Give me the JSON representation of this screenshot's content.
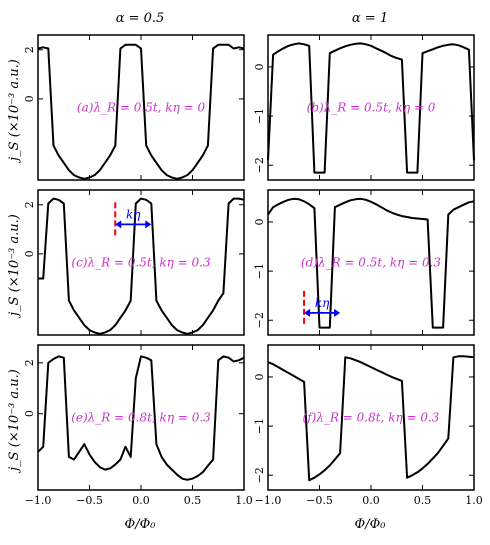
{
  "column_titles": [
    "α = 0.5",
    "α = 1"
  ],
  "x_axis_label": "Φ/Φ₀",
  "y_axis_label": "j_S (×10⁻³ a.u.)",
  "colors": {
    "curve": "#000000",
    "annotation": "#cc33cc",
    "marker_line": "#ff0000",
    "arrow": "#0000ff"
  },
  "chart_data": [
    {
      "type": "line",
      "panel": "a",
      "column": 0,
      "row": 0,
      "annotation": "(a)λ_R = 0.5t, kη = 0",
      "xlim": [
        -1.0,
        1.0
      ],
      "ylim": [
        -3.3,
        2.6
      ],
      "yticks": [
        2,
        0
      ],
      "x": [
        -1.0,
        -0.95,
        -0.9,
        -0.85,
        -0.8,
        -0.75,
        -0.7,
        -0.65,
        -0.6,
        -0.55,
        -0.5,
        -0.45,
        -0.4,
        -0.35,
        -0.3,
        -0.25,
        -0.2,
        -0.15,
        -0.1,
        -0.05,
        0.0,
        0.05,
        0.1,
        0.15,
        0.2,
        0.25,
        0.3,
        0.35,
        0.4,
        0.45,
        0.5,
        0.55,
        0.6,
        0.65,
        0.7,
        0.75,
        0.8,
        0.85,
        0.9,
        0.95,
        1.0
      ],
      "y": [
        2.05,
        2.1,
        2.05,
        -1.9,
        -2.3,
        -2.6,
        -2.9,
        -3.1,
        -3.2,
        -3.25,
        -3.2,
        -3.1,
        -2.9,
        -2.6,
        -2.3,
        -1.9,
        2.05,
        2.2,
        2.2,
        2.2,
        2.05,
        -1.9,
        -2.3,
        -2.6,
        -2.9,
        -3.1,
        -3.2,
        -3.25,
        -3.2,
        -3.1,
        -2.9,
        -2.6,
        -2.3,
        -1.9,
        2.05,
        2.2,
        2.2,
        2.2,
        2.05,
        2.1,
        2.05
      ]
    },
    {
      "type": "line",
      "panel": "b",
      "column": 1,
      "row": 0,
      "annotation": "(b)λ_R = 0.5t, kη = 0",
      "xlim": [
        -1.0,
        1.0
      ],
      "ylim": [
        -2.3,
        0.65
      ],
      "yticks": [
        0,
        -1,
        -2
      ],
      "x": [
        -1.0,
        -0.95,
        -0.9,
        -0.85,
        -0.8,
        -0.75,
        -0.7,
        -0.65,
        -0.6,
        -0.55,
        -0.5,
        -0.45,
        -0.4,
        -0.35,
        -0.3,
        -0.25,
        -0.2,
        -0.15,
        -0.1,
        -0.05,
        0.0,
        0.05,
        0.1,
        0.15,
        0.2,
        0.25,
        0.3,
        0.35,
        0.4,
        0.45,
        0.5,
        0.55,
        0.6,
        0.65,
        0.7,
        0.75,
        0.8,
        0.85,
        0.9,
        0.95,
        1.0
      ],
      "y": [
        -1.9,
        0.25,
        0.32,
        0.38,
        0.43,
        0.46,
        0.48,
        0.46,
        0.43,
        -2.15,
        -2.15,
        -2.15,
        0.28,
        0.33,
        0.38,
        0.42,
        0.45,
        0.47,
        0.48,
        0.46,
        0.43,
        0.38,
        0.33,
        0.28,
        0.22,
        0.18,
        0.15,
        -2.15,
        -2.15,
        -2.15,
        0.28,
        0.32,
        0.36,
        0.4,
        0.43,
        0.45,
        0.46,
        0.44,
        0.4,
        0.35,
        -1.9
      ]
    },
    {
      "type": "line",
      "panel": "c",
      "column": 0,
      "row": 1,
      "annotation": "(c)λ_R = 0.5t, kη = 0.3",
      "xlim": [
        -1.0,
        1.0
      ],
      "ylim": [
        -3.3,
        2.6
      ],
      "yticks": [
        2,
        0
      ],
      "x": [
        -1.0,
        -0.95,
        -0.9,
        -0.85,
        -0.8,
        -0.75,
        -0.7,
        -0.65,
        -0.6,
        -0.55,
        -0.5,
        -0.45,
        -0.4,
        -0.35,
        -0.3,
        -0.25,
        -0.2,
        -0.15,
        -0.1,
        -0.05,
        0.0,
        0.05,
        0.1,
        0.15,
        0.2,
        0.25,
        0.3,
        0.35,
        0.4,
        0.45,
        0.5,
        0.55,
        0.6,
        0.65,
        0.7,
        0.75,
        0.8,
        0.85,
        0.9,
        0.95,
        1.0
      ],
      "y": [
        -1.0,
        -1.0,
        2.05,
        2.25,
        2.2,
        2.05,
        -1.9,
        -2.3,
        -2.6,
        -2.9,
        -3.1,
        -3.2,
        -3.25,
        -3.2,
        -3.1,
        -2.9,
        -2.6,
        -2.3,
        -1.9,
        2.05,
        2.25,
        2.2,
        2.05,
        -1.9,
        -2.3,
        -2.6,
        -2.9,
        -3.1,
        -3.2,
        -3.25,
        -3.2,
        -3.1,
        -2.9,
        -2.6,
        -2.3,
        -1.9,
        -1.6,
        2.05,
        2.25,
        2.25,
        2.2
      ]
    },
    {
      "type": "line",
      "panel": "d",
      "column": 1,
      "row": 1,
      "annotation": "(d)λ_R = 0.5t, kη = 0.3",
      "xlim": [
        -1.0,
        1.0
      ],
      "ylim": [
        -2.3,
        0.65
      ],
      "yticks": [
        0,
        -1,
        -2
      ],
      "x": [
        -1.0,
        -0.95,
        -0.9,
        -0.85,
        -0.8,
        -0.75,
        -0.7,
        -0.65,
        -0.6,
        -0.55,
        -0.5,
        -0.45,
        -0.4,
        -0.35,
        -0.3,
        -0.25,
        -0.2,
        -0.15,
        -0.1,
        -0.05,
        0.0,
        0.05,
        0.1,
        0.15,
        0.2,
        0.25,
        0.3,
        0.35,
        0.4,
        0.45,
        0.5,
        0.55,
        0.6,
        0.65,
        0.7,
        0.75,
        0.8,
        0.85,
        0.9,
        0.95,
        1.0
      ],
      "y": [
        0.15,
        0.3,
        0.36,
        0.41,
        0.45,
        0.47,
        0.46,
        0.42,
        0.36,
        0.28,
        -2.15,
        -2.15,
        -2.15,
        0.3,
        0.35,
        0.4,
        0.44,
        0.46,
        0.47,
        0.45,
        0.41,
        0.36,
        0.3,
        0.24,
        0.19,
        0.15,
        0.12,
        0.1,
        0.08,
        0.07,
        0.06,
        0.05,
        -2.15,
        -2.15,
        -2.15,
        0.15,
        0.25,
        0.3,
        0.35,
        0.4,
        0.42
      ]
    },
    {
      "type": "line",
      "panel": "e",
      "column": 0,
      "row": 2,
      "annotation": "(e)λ_R = 0.8t, kη = 0.3",
      "xlim": [
        -1.0,
        1.0
      ],
      "ylim": [
        -3.0,
        2.7
      ],
      "yticks": [
        2,
        0
      ],
      "x": [
        -1.0,
        -0.95,
        -0.9,
        -0.85,
        -0.8,
        -0.75,
        -0.7,
        -0.65,
        -0.6,
        -0.55,
        -0.5,
        -0.45,
        -0.4,
        -0.35,
        -0.3,
        -0.25,
        -0.2,
        -0.15,
        -0.1,
        -0.05,
        0.0,
        0.05,
        0.1,
        0.15,
        0.2,
        0.25,
        0.3,
        0.35,
        0.4,
        0.45,
        0.5,
        0.55,
        0.6,
        0.65,
        0.7,
        0.75,
        0.8,
        0.85,
        0.9,
        0.95,
        1.0
      ],
      "y": [
        -1.5,
        -1.3,
        2.0,
        2.15,
        2.25,
        2.2,
        -1.7,
        -1.8,
        -1.5,
        -1.2,
        -1.6,
        -1.9,
        -2.1,
        -2.2,
        -2.15,
        -2.0,
        -1.8,
        -1.3,
        -1.7,
        1.4,
        2.25,
        2.2,
        2.1,
        -1.2,
        -1.7,
        -2.0,
        -2.2,
        -2.4,
        -2.55,
        -2.6,
        -2.55,
        -2.45,
        -2.3,
        -2.05,
        -1.8,
        2.1,
        2.25,
        2.2,
        2.05,
        2.1,
        2.2
      ]
    },
    {
      "type": "line",
      "panel": "f",
      "column": 1,
      "row": 2,
      "annotation": "(f)λ_R = 0.8t, kη = 0.3",
      "xlim": [
        -1.0,
        1.0
      ],
      "ylim": [
        -2.3,
        0.65
      ],
      "yticks": [
        0,
        -1,
        -2
      ],
      "x": [
        -1.0,
        -0.95,
        -0.9,
        -0.85,
        -0.8,
        -0.75,
        -0.7,
        -0.65,
        -0.6,
        -0.55,
        -0.5,
        -0.45,
        -0.4,
        -0.35,
        -0.3,
        -0.25,
        -0.2,
        -0.15,
        -0.1,
        -0.05,
        0.0,
        0.05,
        0.1,
        0.15,
        0.2,
        0.25,
        0.3,
        0.35,
        0.4,
        0.45,
        0.5,
        0.55,
        0.6,
        0.65,
        0.7,
        0.75,
        0.8,
        0.85,
        0.9,
        0.95,
        1.0
      ],
      "y": [
        0.3,
        0.26,
        0.2,
        0.14,
        0.08,
        0.02,
        -0.04,
        -0.1,
        -2.1,
        -2.05,
        -1.98,
        -1.9,
        -1.8,
        -1.68,
        -1.55,
        0.4,
        0.38,
        0.34,
        0.3,
        0.25,
        0.2,
        0.15,
        0.1,
        0.05,
        0.0,
        -0.04,
        -0.08,
        -2.05,
        -2.0,
        -1.94,
        -1.86,
        -1.77,
        -1.66,
        -1.55,
        -1.4,
        -1.25,
        0.4,
        0.42,
        0.42,
        0.41,
        0.4
      ]
    }
  ],
  "markers": [
    {
      "panel": "c",
      "label": "kη",
      "from_x": -0.25,
      "to_x": 0.1,
      "y": 1.2
    },
    {
      "panel": "d",
      "label": "kη",
      "from_x": -0.65,
      "to_x": -0.3,
      "y": -1.85
    }
  ],
  "xticks": [
    -1.0,
    -0.5,
    0.0,
    0.5,
    1.0
  ]
}
